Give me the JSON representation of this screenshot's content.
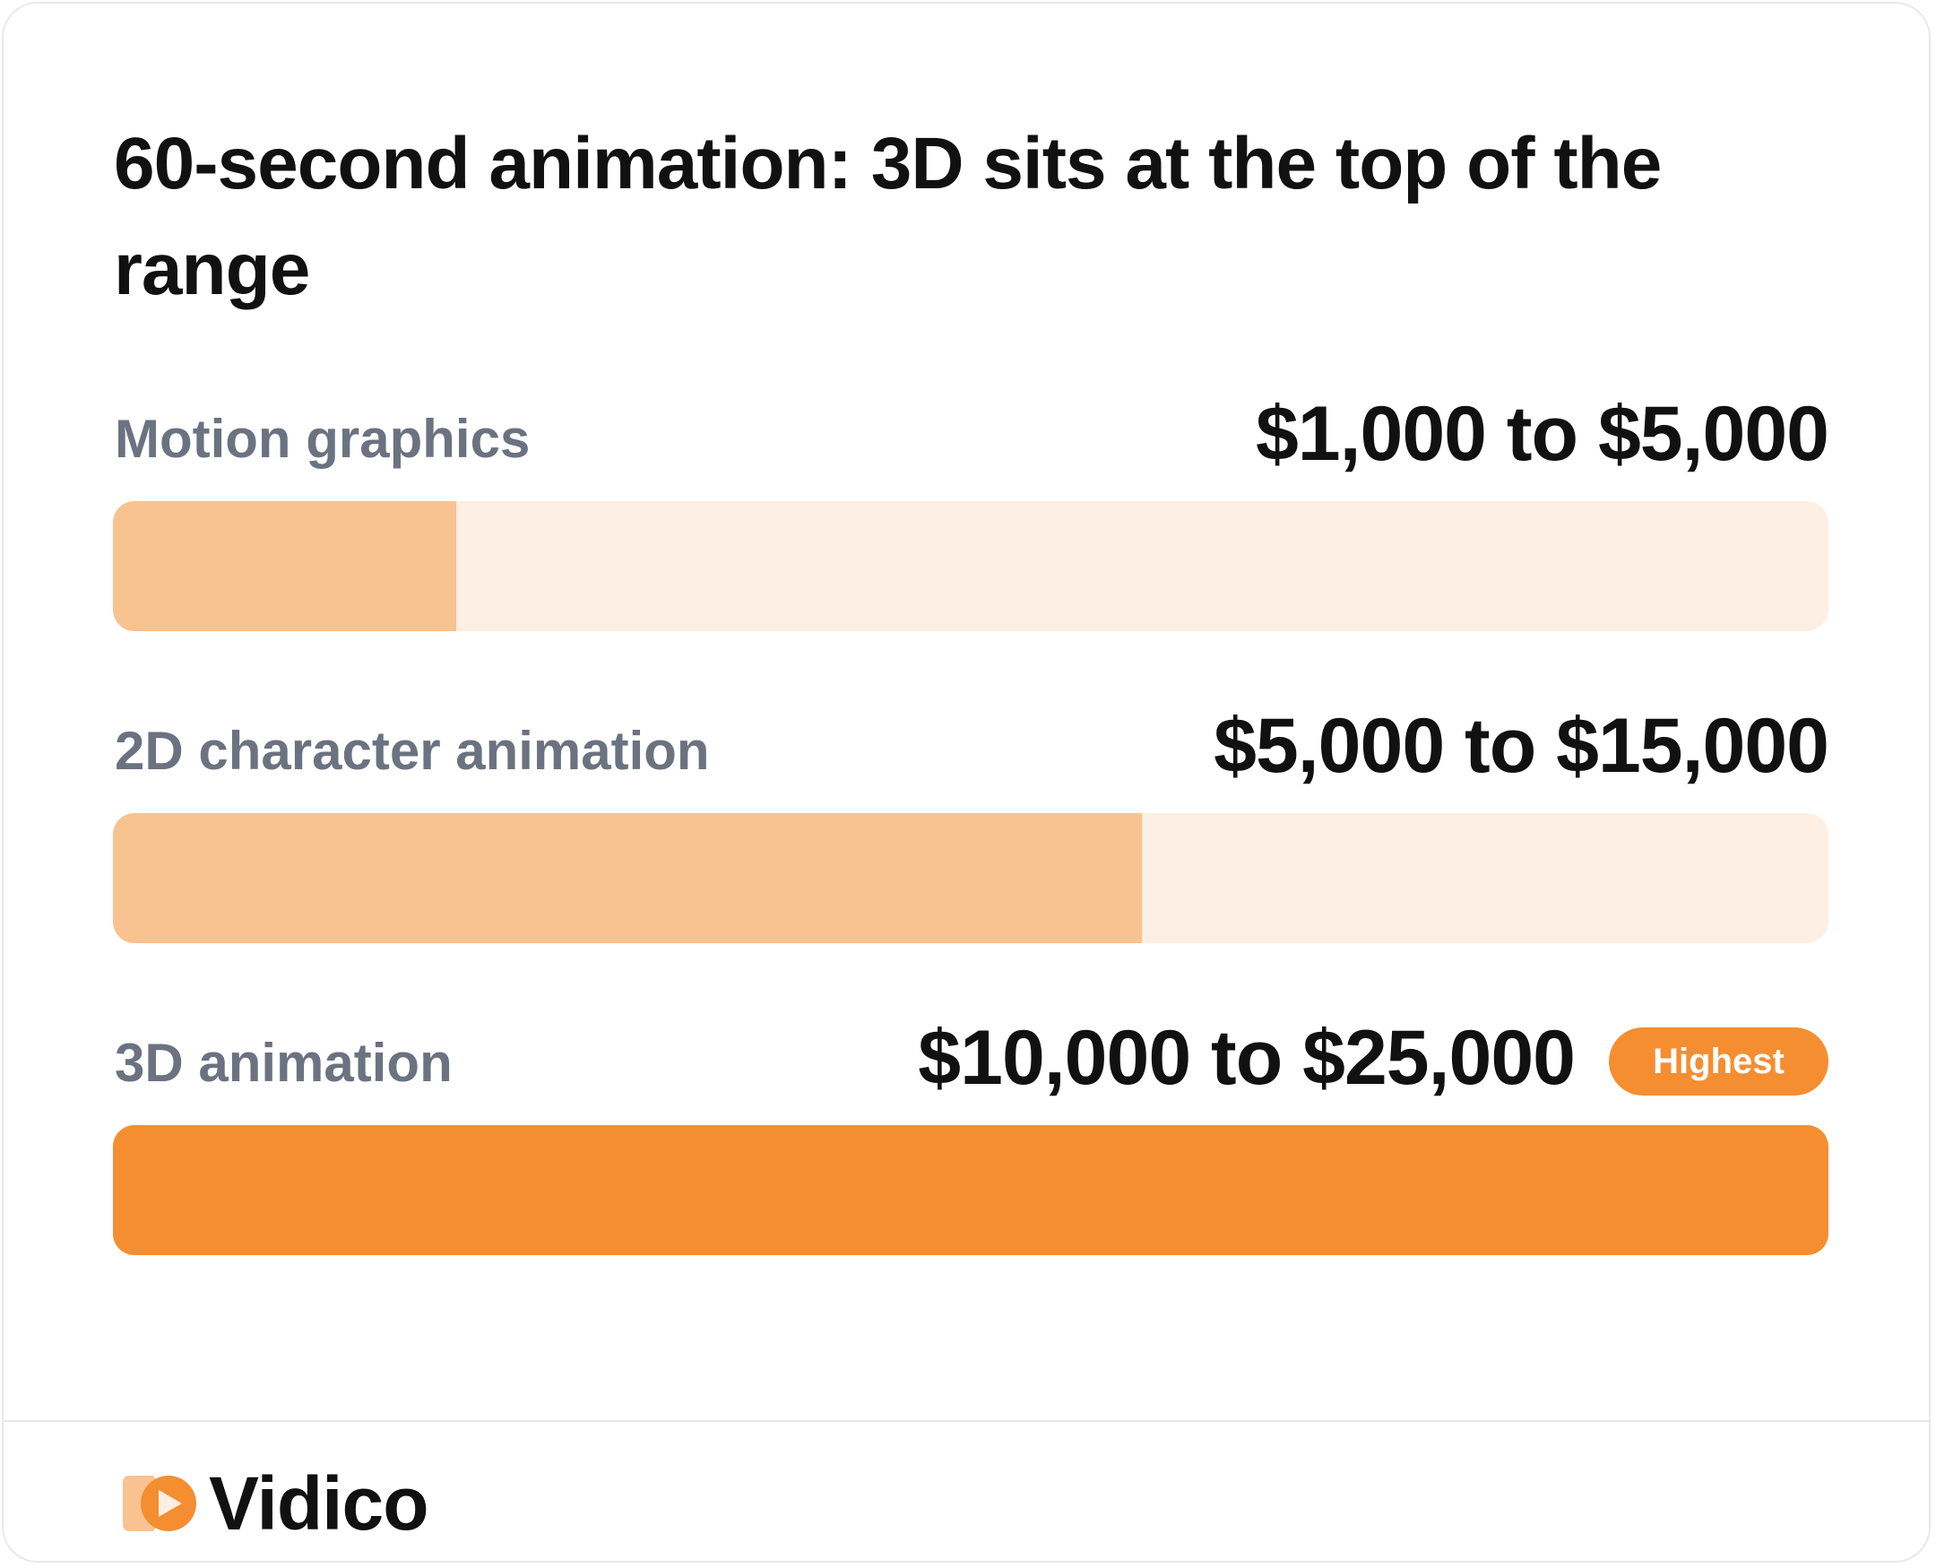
{
  "title": "60-second animation: 3D sits at the top of the range",
  "chart_data": {
    "type": "bar",
    "orientation": "horizontal",
    "categories": [
      "Motion graphics",
      "2D character animation",
      "3D animation"
    ],
    "ranges": [
      {
        "label": "Motion graphics",
        "min": 1000,
        "max": 5000,
        "text": "$1,000 to $5,000"
      },
      {
        "label": "2D character animation",
        "min": 5000,
        "max": 15000,
        "text": "$5,000 to $15,000"
      },
      {
        "label": "3D animation",
        "min": 10000,
        "max": 25000,
        "text": "$10,000 to $25,000",
        "badge": "Highest"
      }
    ],
    "values": [
      5000,
      15000,
      25000
    ],
    "xlim": [
      0,
      25000
    ],
    "grid": false
  },
  "colors": {
    "bar_light": "#f8c291",
    "bar_highlight": "#f48e31",
    "track": "#fdefe3",
    "label": "#6b7280",
    "text": "#111111",
    "badge": "#f48e31"
  },
  "brand": {
    "name": "Vidico",
    "icon": "vidico-play-logo-icon"
  }
}
